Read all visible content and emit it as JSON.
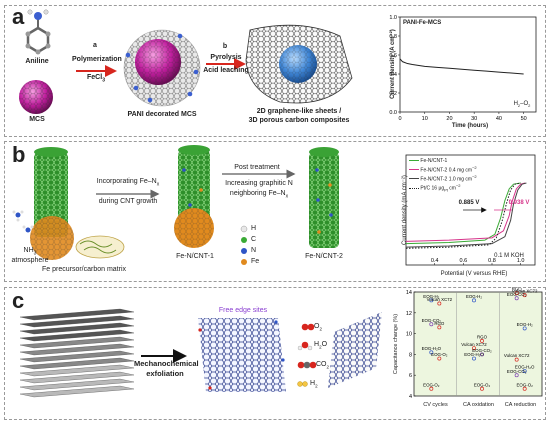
{
  "panel_a": {
    "letter": "a",
    "aniline_label": "Aniline",
    "mcs_label": "MCS",
    "step_a_letter": "a",
    "step_a_line1": "Polymerization",
    "step_a_line2": "FeCl",
    "step_a_line2_sub": "3",
    "pani_label": "PANI decorated MCS",
    "step_b_letter": "b",
    "step_b_line1": "Pyrolysis",
    "step_b_line2": "Acid leaching",
    "product_line1": "2D graphene-like sheets /",
    "product_line2": "3D porous carbon composites",
    "chart_title": "PANI-Fe-MCS",
    "chart_annotation": "H",
    "chart_annotation_sub1": "2",
    "chart_annotation_mid": "–O",
    "chart_annotation_sub2": "2"
  },
  "panel_b": {
    "letter": "b",
    "step1_line1": "Incorporating Fe–N",
    "step1_sub": "x",
    "step1_line2": "during CNT growth",
    "nh3_line1": "NH",
    "nh3_sub": "3",
    "nh3_line2": "atmosphere",
    "precursor_label": "Fe precursor/carbon matrix",
    "cnt1_label": "Fe-N/CNT-1",
    "post_label": "Post treatment",
    "step2_line1": "Increasing graphitic N",
    "step2_line2": "neighboring Fe–N",
    "step2_sub": "x",
    "cnt2_label": "Fe-N/CNT-2",
    "atom_legend": [
      {
        "label": "H",
        "color": "#e8e8e8"
      },
      {
        "label": "C",
        "color": "#3aaa35"
      },
      {
        "label": "N",
        "color": "#2f55c6"
      },
      {
        "label": "Fe",
        "color": "#e08a1e"
      }
    ],
    "chart_legend": [
      {
        "label": "Fe-N/CNT-1",
        "color": "#3aaa35",
        "dash": "solid"
      },
      {
        "label": "Fe-N/CNT-2",
        "color": "#d6338a",
        "dash": "solid"
      },
      {
        "label": "Fe-N/CNT-2",
        "color": "#444444",
        "dash": "solid"
      },
      {
        "label": "Pt/C 16 μg",
        "color": "#222222",
        "dash": "dotted"
      }
    ],
    "legend_loading1": "0.4 mg cm",
    "legend_loading2": "1.0 mg cm",
    "legend_pt_suffix": "cm",
    "halfwave1": "0.885 V",
    "halfwave2": "0.938 V",
    "electrolyte": "0.1 M KOH"
  },
  "panel_c": {
    "letter": "c",
    "arrow_label_line1": "Mechanochemical",
    "arrow_label_line2": "exfoliation",
    "free_edge": "Free edge sites",
    "mol_o2": "O",
    "mol_h2o": "H",
    "mol_co2": "CO",
    "mol_h2": "H",
    "sub2": "2",
    "chart_groups": [
      "CV cycles",
      "CA oxidation",
      "CA reduction"
    ],
    "chart_labels": {
      "g1": [
        "EOG-H₂",
        "Vulcan XC72",
        "EOG-CO₂",
        "RGO",
        "EOG-H₂O",
        "EOG-O₂",
        "EOG-O₂"
      ],
      "g2": [
        "EOG-H₂",
        "RGO",
        "Vulcan XC72",
        "EOG-CO₂",
        "EOG-H₂O",
        "EOG-O₂"
      ],
      "g3": [
        "RGO",
        "Vulcan XC72",
        "EOG-CO₂",
        "EOG-H₂",
        "Vulcan XC72",
        "EOG-H₂O",
        "EOG-CO₂",
        "EOG-O₂"
      ]
    }
  },
  "chart_data": [
    {
      "type": "line",
      "title": "PANI-Fe-MCS",
      "xlabel": "Time (hours)",
      "ylabel": "Current density (A cm⁻²)",
      "xlim": [
        0,
        55
      ],
      "ylim": [
        0.0,
        1.0
      ],
      "xticks": [
        0,
        10,
        20,
        30,
        40,
        50
      ],
      "yticks": [
        0.0,
        0.2,
        0.4,
        0.6,
        0.8,
        1.0
      ],
      "series": [
        {
          "x": [
            0,
            1,
            3,
            5,
            10,
            15,
            20,
            25,
            30,
            35,
            40,
            45,
            50
          ],
          "y": [
            0.56,
            0.53,
            0.51,
            0.5,
            0.48,
            0.47,
            0.46,
            0.45,
            0.44,
            0.43,
            0.42,
            0.41,
            0.4
          ]
        }
      ]
    },
    {
      "type": "line",
      "xlabel": "Potential (V versus RHE)",
      "ylabel": "Current density (mA cm⁻²)",
      "xlim": [
        0.2,
        1.1
      ],
      "ylim": [
        -6,
        0
      ],
      "xticks": [
        0.4,
        0.6,
        0.8,
        1.0
      ],
      "xticklabels": [
        "0.4",
        "0.6",
        "0.8",
        "1.0"
      ],
      "series": [
        {
          "name": "Fe-N/CNT-1",
          "x": [
            0.2,
            0.5,
            0.75,
            0.82,
            0.86,
            0.89,
            0.92,
            0.95,
            1.0
          ],
          "y": [
            -5.2,
            -5.1,
            -4.9,
            -4.4,
            -3.0,
            -1.5,
            -0.5,
            -0.1,
            0
          ]
        },
        {
          "name": "Fe-N/CNT-2 (0.4)",
          "x": [
            0.2,
            0.5,
            0.8,
            0.88,
            0.92,
            0.94,
            0.97,
            1.0,
            1.03
          ],
          "y": [
            -5.0,
            -4.9,
            -4.7,
            -4.1,
            -2.8,
            -1.6,
            -0.5,
            -0.1,
            0
          ]
        },
        {
          "name": "Fe-N/CNT-2 (1.0)",
          "x": [
            0.2,
            0.5,
            0.8,
            0.89,
            0.93,
            0.95,
            0.98,
            1.01,
            1.04
          ],
          "y": [
            -5.5,
            -5.4,
            -5.2,
            -4.6,
            -3.2,
            -1.8,
            -0.6,
            -0.1,
            0
          ]
        },
        {
          "name": "Pt/C",
          "x": [
            0.2,
            0.5,
            0.78,
            0.83,
            0.87,
            0.9,
            0.93,
            0.96,
            1.0
          ],
          "y": [
            -5.6,
            -5.5,
            -5.3,
            -4.7,
            -3.3,
            -1.8,
            -0.6,
            -0.1,
            0
          ]
        }
      ]
    },
    {
      "type": "scatter",
      "ylabel": "Capacitance change (%)",
      "categories": [
        "CV cycles",
        "CA oxidation",
        "CA reduction"
      ],
      "ylim": [
        4,
        14
      ],
      "yticks": [
        4,
        6,
        8,
        10,
        12,
        14
      ],
      "points": [
        {
          "group": "CV cycles",
          "label": "EOG-H₂",
          "y": 13.2
        },
        {
          "group": "CV cycles",
          "label": "Vulcan XC72",
          "y": 12.9
        },
        {
          "group": "CV cycles",
          "label": "EOG-CO₂",
          "y": 10.9
        },
        {
          "group": "CV cycles",
          "label": "RGO",
          "y": 10.6
        },
        {
          "group": "CV cycles",
          "label": "EOG-H₂O",
          "y": 8.2
        },
        {
          "group": "CV cycles",
          "label": "EOG-O₂",
          "y": 7.6
        },
        {
          "group": "CV cycles",
          "label": "EOG-O₂",
          "y": 4.7
        },
        {
          "group": "CA oxidation",
          "label": "EOG-H₂",
          "y": 13.2
        },
        {
          "group": "CA oxidation",
          "label": "RGO",
          "y": 9.3
        },
        {
          "group": "CA oxidation",
          "label": "Vulcan XC72",
          "y": 8.6
        },
        {
          "group": "CA oxidation",
          "label": "EOG-CO₂",
          "y": 8.0
        },
        {
          "group": "CA oxidation",
          "label": "EOG-H₂O",
          "y": 7.6
        },
        {
          "group": "CA oxidation",
          "label": "EOG-O₂",
          "y": 4.7
        },
        {
          "group": "CA reduction",
          "label": "RGO",
          "y": 13.9
        },
        {
          "group": "CA reduction",
          "label": "Vulcan XC72",
          "y": 13.7
        },
        {
          "group": "CA reduction",
          "label": "EOG-CO₂",
          "y": 13.4
        },
        {
          "group": "CA reduction",
          "label": "EOG-H₂",
          "y": 10.5
        },
        {
          "group": "CA reduction",
          "label": "Vulcan XC72",
          "y": 7.5
        },
        {
          "group": "CA reduction",
          "label": "EOG-H₂O",
          "y": 6.4
        },
        {
          "group": "CA reduction",
          "label": "EOG-CO₂",
          "y": 6.0
        },
        {
          "group": "CA reduction",
          "label": "EOG-O₂",
          "y": 4.7
        }
      ]
    }
  ]
}
